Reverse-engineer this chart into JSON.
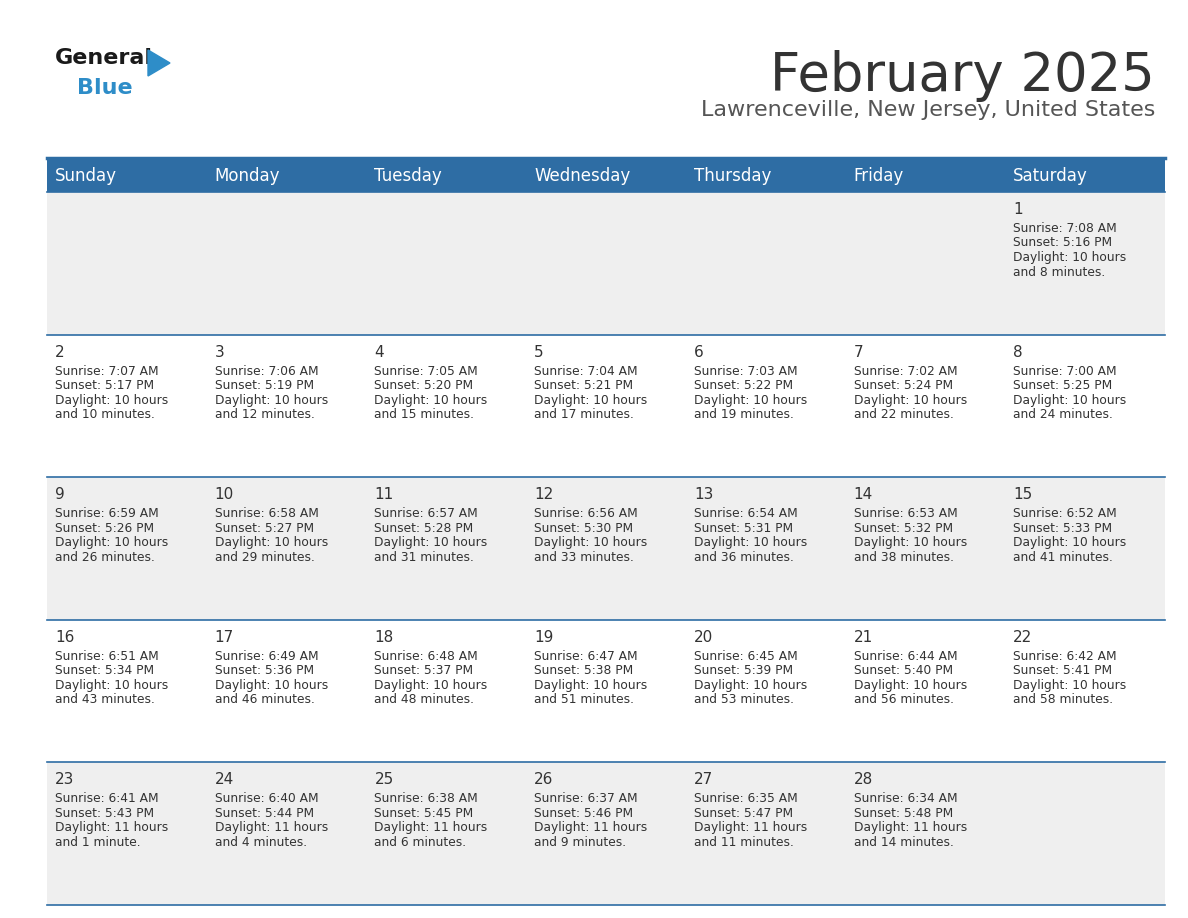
{
  "title": "February 2025",
  "subtitle": "Lawrenceville, New Jersey, United States",
  "days_of_week": [
    "Sunday",
    "Monday",
    "Tuesday",
    "Wednesday",
    "Thursday",
    "Friday",
    "Saturday"
  ],
  "header_bg": "#2E6DA4",
  "header_text_color": "#FFFFFF",
  "row1_bg": "#EFEFEF",
  "row2_bg": "#FFFFFF",
  "separator_color": "#2E6DA4",
  "day_num_color": "#333333",
  "cell_text_color": "#333333",
  "title_color": "#333333",
  "subtitle_color": "#555555",
  "logo_general_color": "#1a1a1a",
  "logo_blue_color": "#2E8DC8",
  "calendar": [
    [
      null,
      null,
      null,
      null,
      null,
      null,
      {
        "day": 1,
        "sunrise": "7:08 AM",
        "sunset": "5:16 PM",
        "daylight": "10 hours",
        "daylight2": "and 8 minutes."
      }
    ],
    [
      {
        "day": 2,
        "sunrise": "7:07 AM",
        "sunset": "5:17 PM",
        "daylight": "10 hours",
        "daylight2": "and 10 minutes."
      },
      {
        "day": 3,
        "sunrise": "7:06 AM",
        "sunset": "5:19 PM",
        "daylight": "10 hours",
        "daylight2": "and 12 minutes."
      },
      {
        "day": 4,
        "sunrise": "7:05 AM",
        "sunset": "5:20 PM",
        "daylight": "10 hours",
        "daylight2": "and 15 minutes."
      },
      {
        "day": 5,
        "sunrise": "7:04 AM",
        "sunset": "5:21 PM",
        "daylight": "10 hours",
        "daylight2": "and 17 minutes."
      },
      {
        "day": 6,
        "sunrise": "7:03 AM",
        "sunset": "5:22 PM",
        "daylight": "10 hours",
        "daylight2": "and 19 minutes."
      },
      {
        "day": 7,
        "sunrise": "7:02 AM",
        "sunset": "5:24 PM",
        "daylight": "10 hours",
        "daylight2": "and 22 minutes."
      },
      {
        "day": 8,
        "sunrise": "7:00 AM",
        "sunset": "5:25 PM",
        "daylight": "10 hours",
        "daylight2": "and 24 minutes."
      }
    ],
    [
      {
        "day": 9,
        "sunrise": "6:59 AM",
        "sunset": "5:26 PM",
        "daylight": "10 hours",
        "daylight2": "and 26 minutes."
      },
      {
        "day": 10,
        "sunrise": "6:58 AM",
        "sunset": "5:27 PM",
        "daylight": "10 hours",
        "daylight2": "and 29 minutes."
      },
      {
        "day": 11,
        "sunrise": "6:57 AM",
        "sunset": "5:28 PM",
        "daylight": "10 hours",
        "daylight2": "and 31 minutes."
      },
      {
        "day": 12,
        "sunrise": "6:56 AM",
        "sunset": "5:30 PM",
        "daylight": "10 hours",
        "daylight2": "and 33 minutes."
      },
      {
        "day": 13,
        "sunrise": "6:54 AM",
        "sunset": "5:31 PM",
        "daylight": "10 hours",
        "daylight2": "and 36 minutes."
      },
      {
        "day": 14,
        "sunrise": "6:53 AM",
        "sunset": "5:32 PM",
        "daylight": "10 hours",
        "daylight2": "and 38 minutes."
      },
      {
        "day": 15,
        "sunrise": "6:52 AM",
        "sunset": "5:33 PM",
        "daylight": "10 hours",
        "daylight2": "and 41 minutes."
      }
    ],
    [
      {
        "day": 16,
        "sunrise": "6:51 AM",
        "sunset": "5:34 PM",
        "daylight": "10 hours",
        "daylight2": "and 43 minutes."
      },
      {
        "day": 17,
        "sunrise": "6:49 AM",
        "sunset": "5:36 PM",
        "daylight": "10 hours",
        "daylight2": "and 46 minutes."
      },
      {
        "day": 18,
        "sunrise": "6:48 AM",
        "sunset": "5:37 PM",
        "daylight": "10 hours",
        "daylight2": "and 48 minutes."
      },
      {
        "day": 19,
        "sunrise": "6:47 AM",
        "sunset": "5:38 PM",
        "daylight": "10 hours",
        "daylight2": "and 51 minutes."
      },
      {
        "day": 20,
        "sunrise": "6:45 AM",
        "sunset": "5:39 PM",
        "daylight": "10 hours",
        "daylight2": "and 53 minutes."
      },
      {
        "day": 21,
        "sunrise": "6:44 AM",
        "sunset": "5:40 PM",
        "daylight": "10 hours",
        "daylight2": "and 56 minutes."
      },
      {
        "day": 22,
        "sunrise": "6:42 AM",
        "sunset": "5:41 PM",
        "daylight": "10 hours",
        "daylight2": "and 58 minutes."
      }
    ],
    [
      {
        "day": 23,
        "sunrise": "6:41 AM",
        "sunset": "5:43 PM",
        "daylight": "11 hours",
        "daylight2": "and 1 minute."
      },
      {
        "day": 24,
        "sunrise": "6:40 AM",
        "sunset": "5:44 PM",
        "daylight": "11 hours",
        "daylight2": "and 4 minutes."
      },
      {
        "day": 25,
        "sunrise": "6:38 AM",
        "sunset": "5:45 PM",
        "daylight": "11 hours",
        "daylight2": "and 6 minutes."
      },
      {
        "day": 26,
        "sunrise": "6:37 AM",
        "sunset": "5:46 PM",
        "daylight": "11 hours",
        "daylight2": "and 9 minutes."
      },
      {
        "day": 27,
        "sunrise": "6:35 AM",
        "sunset": "5:47 PM",
        "daylight": "11 hours",
        "daylight2": "and 11 minutes."
      },
      {
        "day": 28,
        "sunrise": "6:34 AM",
        "sunset": "5:48 PM",
        "daylight": "11 hours",
        "daylight2": "and 14 minutes."
      },
      null
    ]
  ]
}
